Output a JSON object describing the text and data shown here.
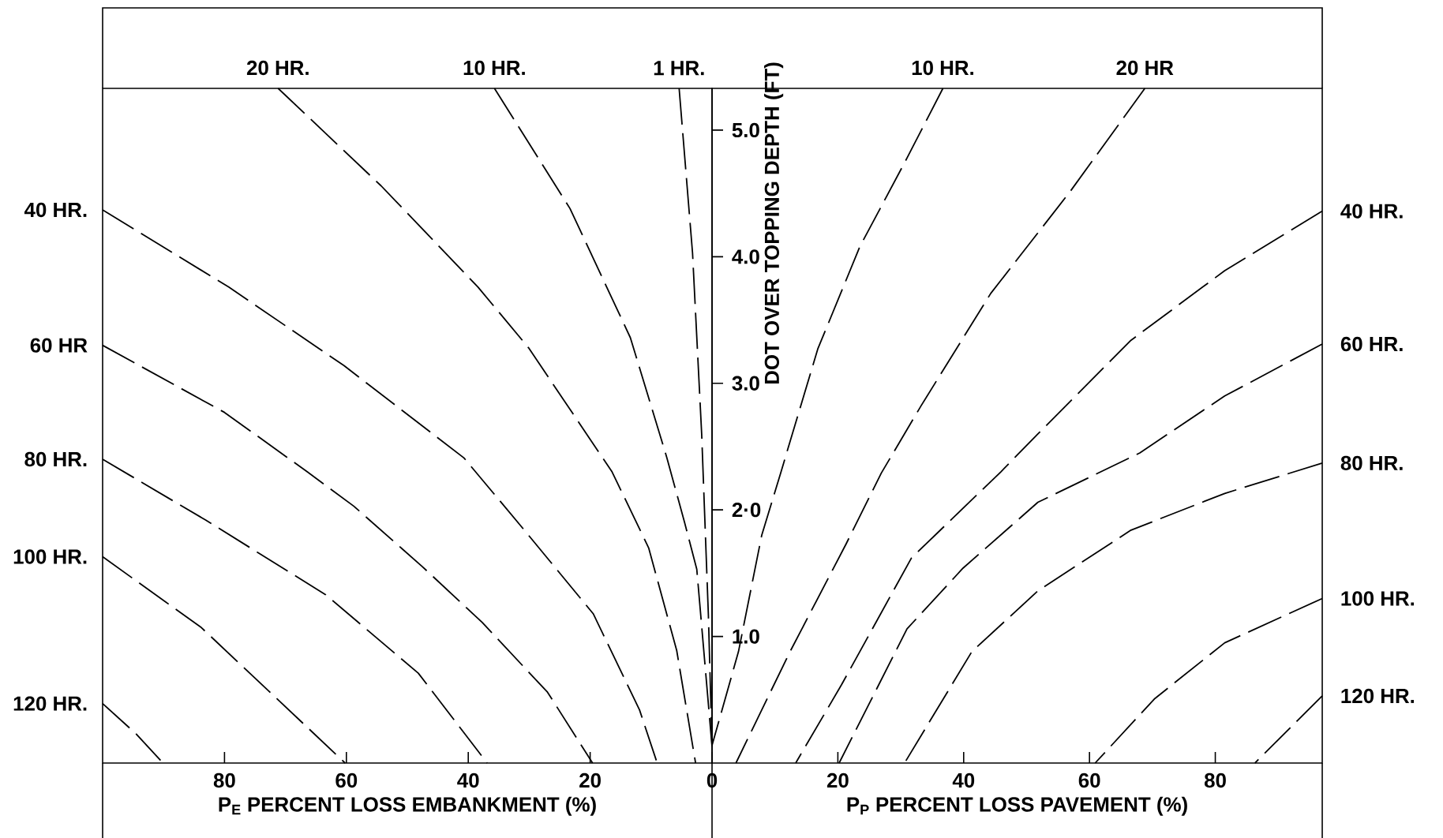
{
  "chart_data": [
    {
      "type": "line",
      "xlabel": "P$_{E}$ PERCENT LOSS EMBANKMENT (%)",
      "xlim": [
        100,
        0
      ],
      "xticks": [
        80,
        60,
        40,
        20,
        0
      ],
      "ylim": [
        0,
        5.33
      ],
      "line_style": "dashed",
      "series": [
        {
          "name": "20 HR.",
          "color": "#000000",
          "x": [
            71.2,
            54.3,
            38.4,
            30.1,
            16.4,
            10.4,
            5.8,
            2.7
          ],
          "values": [
            5.33,
            4.56,
            3.76,
            3.28,
            2.3,
            1.7,
            0.89,
            0
          ]
        },
        {
          "name": "10 HR.",
          "color": "#000000",
          "x": [
            35.7,
            23.3,
            13.4,
            7.4,
            4.5,
            2.5,
            0
          ],
          "values": [
            5.33,
            4.38,
            3.36,
            2.41,
            1.9,
            1.53,
            0.13
          ]
        },
        {
          "name": "1 HR.",
          "color": "#000000",
          "x": [
            5.4,
            3.2,
            1.7,
            0.6,
            0
          ],
          "values": [
            5.33,
            4.03,
            2.6,
            1.17,
            0.13
          ]
        },
        {
          "name": "40 HR.",
          "color": "#000000",
          "x": [
            100,
            79.3,
            60.4,
            40.7,
            30.8,
            19.5,
            11.9,
            9.0
          ],
          "values": [
            4.37,
            3.76,
            3.14,
            2.41,
            1.84,
            1.18,
            0.42,
            0
          ]
        },
        {
          "name": "60 HR",
          "color": "#000000",
          "x": [
            100,
            80.0,
            66.4,
            58.8,
            47.5,
            37.7,
            27.0,
            19.6
          ],
          "values": [
            3.3,
            2.77,
            2.3,
            2.03,
            1.55,
            1.11,
            0.56,
            0
          ]
        },
        {
          "name": "80 HR.",
          "color": "#000000",
          "x": [
            100,
            83.1,
            63.4,
            48.2,
            36.9
          ],
          "values": [
            2.4,
            1.92,
            1.33,
            0.71,
            0
          ]
        },
        {
          "name": "100 HR.",
          "color": "#000000",
          "x": [
            100,
            83.8,
            71.0,
            60.2
          ],
          "values": [
            1.63,
            1.07,
            0.49,
            0
          ]
        },
        {
          "name": "120 HR.",
          "color": "#000000",
          "x": [
            100,
            94.5,
            90.1
          ],
          "values": [
            0.47,
            0.23,
            0
          ]
        }
      ]
    },
    {
      "type": "line",
      "xlabel": "P$_{P}$ PERCENT LOSS PAVEMENT (%)",
      "ylabel": "DOT OVER TOPPING DEPTH (FT)",
      "xlim": [
        0,
        97
      ],
      "xticks": [
        20,
        40,
        60,
        80
      ],
      "ylim": [
        0,
        5.33
      ],
      "yticks": [
        {
          "value": 1,
          "label": "1.0"
        },
        {
          "value": 2,
          "label": "2·0"
        },
        {
          "value": 3,
          "label": "3.0"
        },
        {
          "value": 4,
          "label": "4.0"
        },
        {
          "value": 5,
          "label": "5.0"
        }
      ],
      "line_style": "dashed",
      "series": [
        {
          "name": "10 HR.",
          "color": "#000000",
          "x": [
            36.7,
            31.0,
            23.5,
            16.8,
            10.9,
            7.9,
            4.2,
            0
          ],
          "values": [
            5.33,
            4.78,
            4.08,
            3.27,
            2.29,
            1.8,
            0.88,
            0.14
          ]
        },
        {
          "name": "20 HR",
          "color": "#000000",
          "x": [
            68.8,
            57.0,
            44.3,
            33.2,
            26.9,
            21.3,
            12.4,
            3.8
          ],
          "values": [
            5.33,
            4.52,
            3.71,
            2.82,
            2.29,
            1.73,
            0.88,
            0
          ]
        },
        {
          "name": "40 HR.",
          "color": "#000000",
          "x": [
            97,
            81.5,
            66.6,
            51.8,
            45.9,
            31.7,
            20.6,
            13.3
          ],
          "values": [
            4.36,
            3.89,
            3.34,
            2.6,
            2.3,
            1.62,
            0.62,
            0
          ]
        },
        {
          "name": "60 HR.",
          "color": "#000000",
          "x": [
            97,
            81.5,
            68.0,
            51.8,
            39.9,
            31.0,
            20.2
          ],
          "values": [
            3.31,
            2.9,
            2.45,
            2.06,
            1.54,
            1.06,
            0
          ]
        },
        {
          "name": "80 HR.",
          "color": "#000000",
          "x": [
            97,
            81.5,
            66.6,
            51.8,
            41.3,
            30.6
          ],
          "values": [
            2.37,
            2.13,
            1.84,
            1.36,
            0.88,
            0
          ]
        },
        {
          "name": "100 HR.",
          "color": "#000000",
          "x": [
            97,
            81.5,
            70.4,
            60.9
          ],
          "values": [
            1.3,
            0.95,
            0.51,
            0
          ]
        },
        {
          "name": "120 HR.",
          "color": "#000000",
          "x": [
            97,
            86.3
          ],
          "values": [
            0.53,
            0
          ]
        }
      ]
    }
  ]
}
